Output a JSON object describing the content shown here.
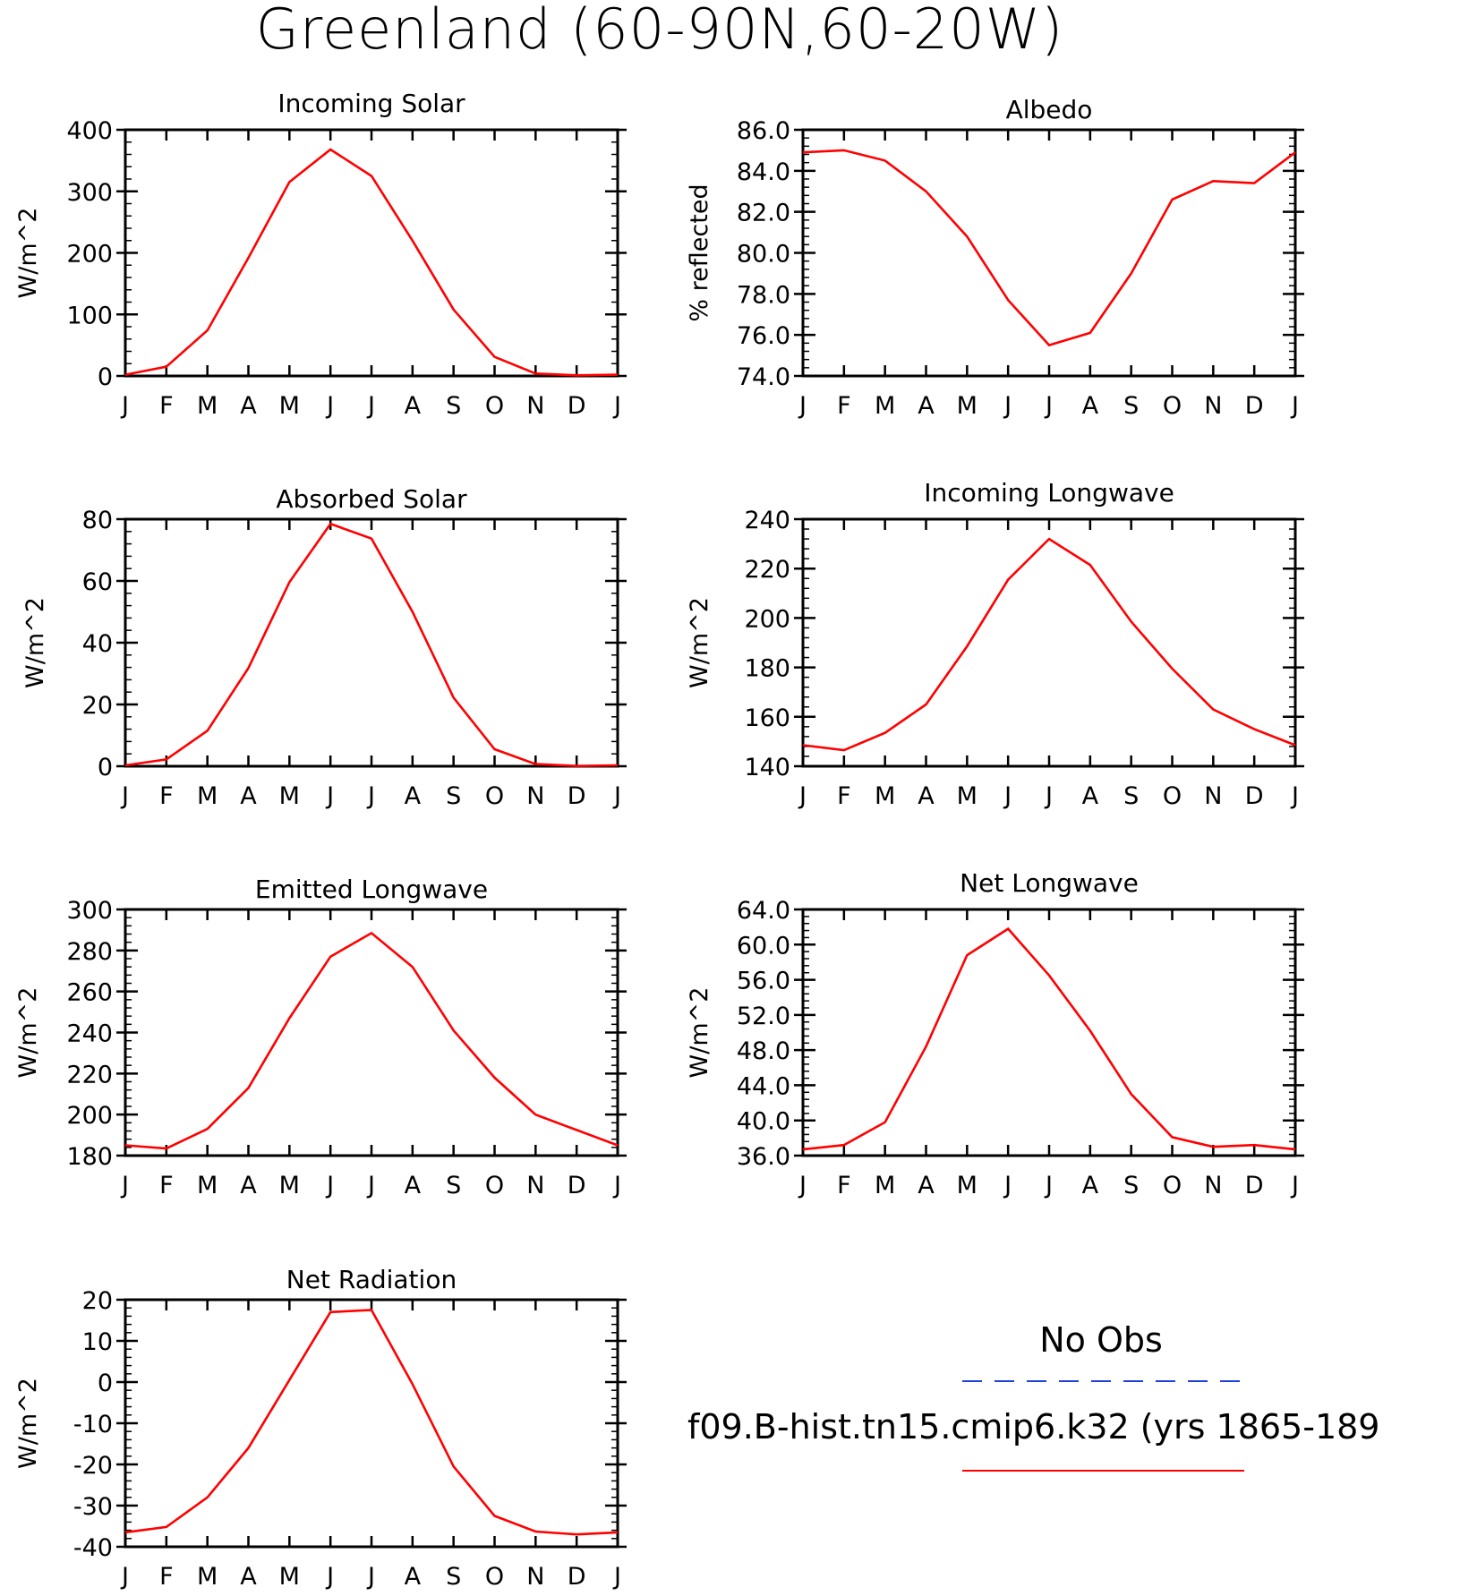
{
  "title": "Greenland (60-90N,60-20W)",
  "month_labels": [
    "J",
    "F",
    "M",
    "A",
    "M",
    "J",
    "J",
    "A",
    "S",
    "O",
    "N",
    "D",
    "J"
  ],
  "legend": {
    "obs_label": "No Obs",
    "obs_color": "#1f3fd6",
    "model_label": "f09.B-hist.tn15.cmip6.k32 (yrs 1865-189",
    "model_color": "#ff0000"
  },
  "chart_data": [
    {
      "type": "line",
      "title": "Incoming Solar",
      "ylabel": "W/m^2",
      "ylim": [
        0,
        400
      ],
      "yticks": [
        0,
        100,
        200,
        300,
        400
      ],
      "ytick_labels": [
        "0",
        "100",
        "200",
        "300",
        "400"
      ],
      "ytick_minor": 20,
      "x": [
        "J",
        "F",
        "M",
        "A",
        "M",
        "J",
        "J",
        "A",
        "S",
        "O",
        "N",
        "D",
        "J"
      ],
      "series": [
        {
          "values": [
            2,
            15,
            74,
            192,
            315,
            368,
            325,
            220,
            108,
            31,
            4,
            1,
            2
          ],
          "color": "#ff0000"
        }
      ]
    },
    {
      "type": "line",
      "title": "Albedo",
      "ylabel": "% reflected",
      "ylim": [
        74,
        86
      ],
      "yticks": [
        74,
        76,
        78,
        80,
        82,
        84,
        86
      ],
      "ytick_labels": [
        "74.0",
        "76.0",
        "78.0",
        "80.0",
        "82.0",
        "84.0",
        "86.0"
      ],
      "ytick_minor": 0.4,
      "x": [
        "J",
        "F",
        "M",
        "A",
        "M",
        "J",
        "J",
        "A",
        "S",
        "O",
        "N",
        "D",
        "J"
      ],
      "series": [
        {
          "values": [
            84.9,
            85.0,
            84.5,
            83.0,
            80.8,
            77.7,
            75.5,
            76.1,
            79.0,
            82.6,
            83.5,
            83.4,
            84.9
          ],
          "color": "#ff0000"
        }
      ]
    },
    {
      "type": "line",
      "title": "Absorbed Solar",
      "ylabel": "W/m^2",
      "ylim": [
        0,
        80
      ],
      "yticks": [
        0,
        20,
        40,
        60,
        80
      ],
      "ytick_labels": [
        "0",
        "20",
        "40",
        "60",
        "80"
      ],
      "ytick_minor": 4,
      "x": [
        "J",
        "F",
        "M",
        "A",
        "M",
        "J",
        "J",
        "A",
        "S",
        "O",
        "N",
        "D",
        "J"
      ],
      "series": [
        {
          "values": [
            0.3,
            2.2,
            11.5,
            31.8,
            59.6,
            78.5,
            73.7,
            50.0,
            22.2,
            5.5,
            0.7,
            0.1,
            0.3
          ],
          "color": "#ff0000"
        }
      ]
    },
    {
      "type": "line",
      "title": "Incoming Longwave",
      "ylabel": "W/m^2",
      "ylim": [
        140,
        240
      ],
      "yticks": [
        140,
        160,
        180,
        200,
        220,
        240
      ],
      "ytick_labels": [
        "140",
        "160",
        "180",
        "200",
        "220",
        "240"
      ],
      "ytick_minor": 4,
      "x": [
        "J",
        "F",
        "M",
        "A",
        "M",
        "J",
        "J",
        "A",
        "S",
        "O",
        "N",
        "D",
        "J"
      ],
      "series": [
        {
          "values": [
            148.5,
            146.5,
            153.5,
            165,
            188.5,
            215.5,
            232,
            221.5,
            198.5,
            179.5,
            163,
            155,
            148.5
          ],
          "color": "#ff0000"
        }
      ]
    },
    {
      "type": "line",
      "title": "Emitted Longwave",
      "ylabel": "W/m^2",
      "ylim": [
        180,
        300
      ],
      "yticks": [
        180,
        200,
        220,
        240,
        260,
        280,
        300
      ],
      "ytick_labels": [
        "180",
        "200",
        "220",
        "240",
        "260",
        "280",
        "300"
      ],
      "ytick_minor": 4,
      "x": [
        "J",
        "F",
        "M",
        "A",
        "M",
        "J",
        "J",
        "A",
        "S",
        "O",
        "N",
        "D",
        "J"
      ],
      "series": [
        {
          "values": [
            185,
            183.5,
            193,
            213,
            247,
            277,
            288.5,
            272,
            241,
            218,
            200,
            192.5,
            185
          ],
          "color": "#ff0000"
        }
      ]
    },
    {
      "type": "line",
      "title": "Net Longwave",
      "ylabel": "W/m^2",
      "ylim": [
        36,
        64
      ],
      "yticks": [
        36,
        40,
        44,
        48,
        52,
        56,
        60,
        64
      ],
      "ytick_labels": [
        "36.0",
        "40.0",
        "44.0",
        "48.0",
        "52.0",
        "56.0",
        "60.0",
        "64.0"
      ],
      "ytick_minor": 0.8,
      "x": [
        "J",
        "F",
        "M",
        "A",
        "M",
        "J",
        "J",
        "A",
        "S",
        "O",
        "N",
        "D",
        "J"
      ],
      "series": [
        {
          "values": [
            36.7,
            37.2,
            39.8,
            48.4,
            58.8,
            61.8,
            56.5,
            50.2,
            43.0,
            38.1,
            37.0,
            37.2,
            36.7
          ],
          "color": "#ff0000"
        }
      ]
    },
    {
      "type": "line",
      "title": "Net Radiation",
      "ylabel": "W/m^2",
      "ylim": [
        -40,
        20
      ],
      "yticks": [
        -40,
        -30,
        -20,
        -10,
        0,
        10,
        20
      ],
      "ytick_labels": [
        "-40",
        "-30",
        "-20",
        "-10",
        "0",
        "10",
        "20"
      ],
      "ytick_minor": 2,
      "x": [
        "J",
        "F",
        "M",
        "A",
        "M",
        "J",
        "J",
        "A",
        "S",
        "O",
        "N",
        "D",
        "J"
      ],
      "series": [
        {
          "values": [
            -36.5,
            -35.2,
            -28,
            -16,
            0.5,
            17,
            17.5,
            -0.5,
            -20.5,
            -32.5,
            -36.3,
            -37,
            -36.5
          ],
          "color": "#ff0000"
        }
      ]
    }
  ]
}
